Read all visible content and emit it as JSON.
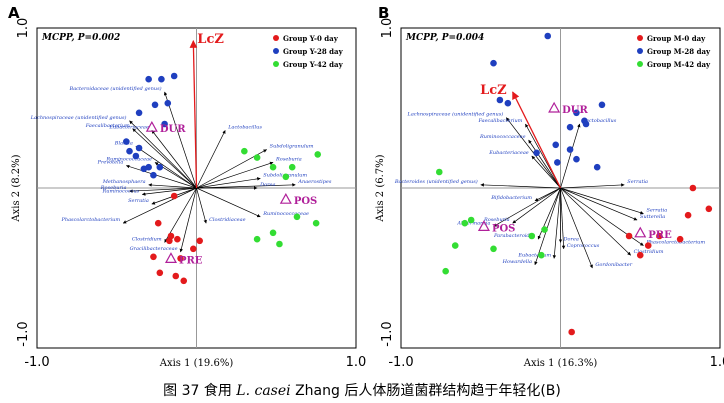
{
  "caption": {
    "prefix": "图 37 食用 ",
    "species": "L. casei",
    "suffix": " Zhang 后人体肠道菌群结构趋于年轻化(B)"
  },
  "colors": {
    "day0": "#e31a1c",
    "day28": "#1f3fbf",
    "day42": "#33dd33",
    "lcz_arrow": "#e31a1c",
    "group_label": "#b0209a",
    "taxon_label": "#1f3fbf"
  },
  "chart_data": [
    {
      "type": "scatter",
      "panel_label": "A",
      "stat_label": "MCPP, P=0.002",
      "xlabel": "Axis 1 (19.6%)",
      "ylabel": "Axis 2 (8.2%)",
      "xlim": [
        -1.0,
        1.0
      ],
      "ylim": [
        -1.0,
        1.0
      ],
      "x_ticks": [
        "-1.0",
        "1.0"
      ],
      "y_ticks": [
        "1.0",
        "-1.0"
      ],
      "legend_position": "top-right",
      "series": [
        {
          "name": "Group Y-0 day",
          "color": "#e31a1c",
          "points": [
            [
              -0.14,
              -0.05
            ],
            [
              -0.24,
              -0.22
            ],
            [
              -0.16,
              -0.3
            ],
            [
              -0.12,
              -0.32
            ],
            [
              -0.27,
              -0.43
            ],
            [
              -0.1,
              -0.44
            ],
            [
              -0.02,
              -0.38
            ],
            [
              0.02,
              -0.33
            ],
            [
              -0.23,
              -0.53
            ],
            [
              -0.13,
              -0.55
            ],
            [
              -0.08,
              -0.58
            ],
            [
              -0.17,
              -0.33
            ]
          ]
        },
        {
          "name": "Group Y-28 day",
          "color": "#1f3fbf",
          "points": [
            [
              -0.3,
              0.68
            ],
            [
              -0.22,
              0.68
            ],
            [
              -0.14,
              0.7
            ],
            [
              -0.18,
              0.53
            ],
            [
              -0.26,
              0.52
            ],
            [
              -0.36,
              0.47
            ],
            [
              -0.38,
              0.2
            ],
            [
              -0.42,
              0.23
            ],
            [
              -0.36,
              0.25
            ],
            [
              -0.3,
              0.13
            ],
            [
              -0.23,
              0.13
            ],
            [
              -0.27,
              0.08
            ],
            [
              -0.44,
              0.29
            ],
            [
              -0.2,
              0.4
            ],
            [
              -0.33,
              0.12
            ]
          ]
        },
        {
          "name": "Group Y-42 day",
          "color": "#33dd33",
          "points": [
            [
              0.3,
              0.23
            ],
            [
              0.38,
              0.19
            ],
            [
              0.6,
              0.13
            ],
            [
              0.76,
              0.21
            ],
            [
              0.56,
              0.07
            ],
            [
              0.48,
              0.13
            ],
            [
              0.38,
              -0.32
            ],
            [
              0.48,
              -0.28
            ],
            [
              0.52,
              -0.35
            ],
            [
              0.63,
              -0.18
            ],
            [
              0.75,
              -0.22
            ]
          ]
        }
      ],
      "groups": [
        {
          "label": "DUR",
          "x": -0.28,
          "y": 0.38
        },
        {
          "label": "POS",
          "x": 0.56,
          "y": -0.07
        },
        {
          "label": "PRE",
          "x": -0.16,
          "y": -0.44
        }
      ],
      "env_vector": {
        "label": "LcZ",
        "x": -0.02,
        "y": 0.92
      },
      "taxa": [
        {
          "label": "Bacteroidaceae (unidentified genus)",
          "x": -0.2,
          "y": 0.6
        },
        {
          "label": "Lachnospiraceae (unidentified genus)",
          "x": -0.42,
          "y": 0.42
        },
        {
          "label": "Faecalibacterium",
          "x": -0.4,
          "y": 0.37
        },
        {
          "label": "Eubacteriaceae",
          "x": -0.28,
          "y": 0.36
        },
        {
          "label": "Blautia",
          "x": -0.38,
          "y": 0.26
        },
        {
          "label": "Prevotella",
          "x": -0.44,
          "y": 0.14
        },
        {
          "label": "Ruminococcaceae",
          "x": -0.26,
          "y": 0.16
        },
        {
          "label": "Methanosphaera",
          "x": -0.3,
          "y": 0.02
        },
        {
          "label": "Roseburia",
          "x": -0.42,
          "y": -0.02
        },
        {
          "label": "Ruminococcus",
          "x": -0.34,
          "y": -0.04
        },
        {
          "label": "Serratia",
          "x": -0.28,
          "y": -0.1
        },
        {
          "label": "Phascolarctobacterium",
          "x": -0.46,
          "y": -0.22
        },
        {
          "label": "Clostridium",
          "x": -0.2,
          "y": -0.34
        },
        {
          "label": "Gracilibacteraceae",
          "x": -0.1,
          "y": -0.4
        },
        {
          "label": "Clostridiaceae",
          "x": 0.06,
          "y": -0.22
        },
        {
          "label": "Lactobacillus",
          "x": 0.18,
          "y": 0.36
        },
        {
          "label": "Subdoligranulum",
          "x": 0.44,
          "y": 0.24
        },
        {
          "label": "Roseburia",
          "x": 0.48,
          "y": 0.16
        },
        {
          "label": "Subdoligranulum",
          "x": 0.4,
          "y": 0.06
        },
        {
          "label": "Anaerostipes",
          "x": 0.62,
          "y": 0.02
        },
        {
          "label": "Ruminococcaceae",
          "x": 0.4,
          "y": -0.18
        },
        {
          "label": "Dorea",
          "x": 0.38,
          "y": 0.0
        }
      ]
    },
    {
      "type": "scatter",
      "panel_label": "B",
      "stat_label": "MCPP, P=0.004",
      "xlabel": "Axis 1 (16.3%)",
      "ylabel": "Axis 2 (6.7%)",
      "xlim": [
        -1.0,
        1.0
      ],
      "ylim": [
        -1.0,
        1.0
      ],
      "x_ticks": [
        "-1.0",
        "1.0"
      ],
      "y_ticks": [
        "1.0",
        "-1.0"
      ],
      "legend_position": "top-right",
      "series": [
        {
          "name": "Group M-0 day",
          "color": "#e31a1c",
          "points": [
            [
              0.83,
              0.0
            ],
            [
              0.8,
              -0.17
            ],
            [
              0.93,
              -0.13
            ],
            [
              0.62,
              -0.3
            ],
            [
              0.75,
              -0.32
            ],
            [
              0.5,
              -0.42
            ],
            [
              0.43,
              -0.3
            ],
            [
              0.07,
              -0.9
            ],
            [
              0.55,
              -0.36
            ]
          ]
        },
        {
          "name": "Group M-28 day",
          "color": "#1f3fbf",
          "points": [
            [
              -0.08,
              0.95
            ],
            [
              -0.42,
              0.78
            ],
            [
              -0.38,
              0.55
            ],
            [
              -0.33,
              0.53
            ],
            [
              0.26,
              0.52
            ],
            [
              0.15,
              0.42
            ],
            [
              0.06,
              0.38
            ],
            [
              0.06,
              0.24
            ],
            [
              0.1,
              0.18
            ],
            [
              -0.02,
              0.16
            ],
            [
              -0.03,
              0.27
            ],
            [
              -0.15,
              0.22
            ],
            [
              0.23,
              0.13
            ],
            [
              0.1,
              0.47
            ],
            [
              0.16,
              0.4
            ]
          ]
        },
        {
          "name": "Group M-42 day",
          "color": "#33dd33",
          "points": [
            [
              -0.76,
              0.1
            ],
            [
              -0.56,
              -0.2
            ],
            [
              -0.66,
              -0.36
            ],
            [
              -0.6,
              -0.22
            ],
            [
              -0.42,
              -0.38
            ],
            [
              -0.18,
              -0.3
            ],
            [
              -0.1,
              -0.26
            ],
            [
              -0.72,
              -0.52
            ],
            [
              -0.12,
              -0.42
            ]
          ]
        }
      ],
      "groups": [
        {
          "label": "DUR",
          "x": -0.04,
          "y": 0.5
        },
        {
          "label": "POS",
          "x": -0.48,
          "y": -0.24
        },
        {
          "label": "PRE",
          "x": 0.5,
          "y": -0.28
        }
      ],
      "env_vector": {
        "label": "LcZ",
        "x": -0.3,
        "y": 0.6
      },
      "taxa": [
        {
          "label": "Lachnospiraceae (unidentified genus)",
          "x": -0.34,
          "y": 0.44
        },
        {
          "label": "Faecalibacterium",
          "x": -0.22,
          "y": 0.4
        },
        {
          "label": "Lactobacillus",
          "x": 0.12,
          "y": 0.4
        },
        {
          "label": "Ruminococcaceae",
          "x": -0.2,
          "y": 0.3
        },
        {
          "label": "Eubacteriaceae",
          "x": -0.18,
          "y": 0.2
        },
        {
          "label": "Bacteroides (unidentified genus)",
          "x": -0.5,
          "y": 0.02
        },
        {
          "label": "Bifidobacterium",
          "x": -0.16,
          "y": -0.08
        },
        {
          "label": "Akkermansia",
          "x": -0.42,
          "y": -0.24
        },
        {
          "label": "Roseburia",
          "x": -0.3,
          "y": -0.22
        },
        {
          "label": "Parabacteroides",
          "x": -0.14,
          "y": -0.32
        },
        {
          "label": "Dorea",
          "x": 0.0,
          "y": -0.34
        },
        {
          "label": "Coprococcus",
          "x": 0.02,
          "y": -0.38
        },
        {
          "label": "Eubacterium",
          "x": -0.04,
          "y": -0.44
        },
        {
          "label": "Howardella",
          "x": -0.16,
          "y": -0.48
        },
        {
          "label": "Gordonibacter",
          "x": 0.2,
          "y": -0.5
        },
        {
          "label": "Clostridium",
          "x": 0.44,
          "y": -0.42
        },
        {
          "label": "Phascolarctobacterium",
          "x": 0.52,
          "y": -0.36
        },
        {
          "label": "Serratia",
          "x": 0.52,
          "y": -0.16
        },
        {
          "label": "Sutterella",
          "x": 0.48,
          "y": -0.2
        },
        {
          "label": "Serratia",
          "x": 0.4,
          "y": 0.02
        }
      ]
    }
  ]
}
